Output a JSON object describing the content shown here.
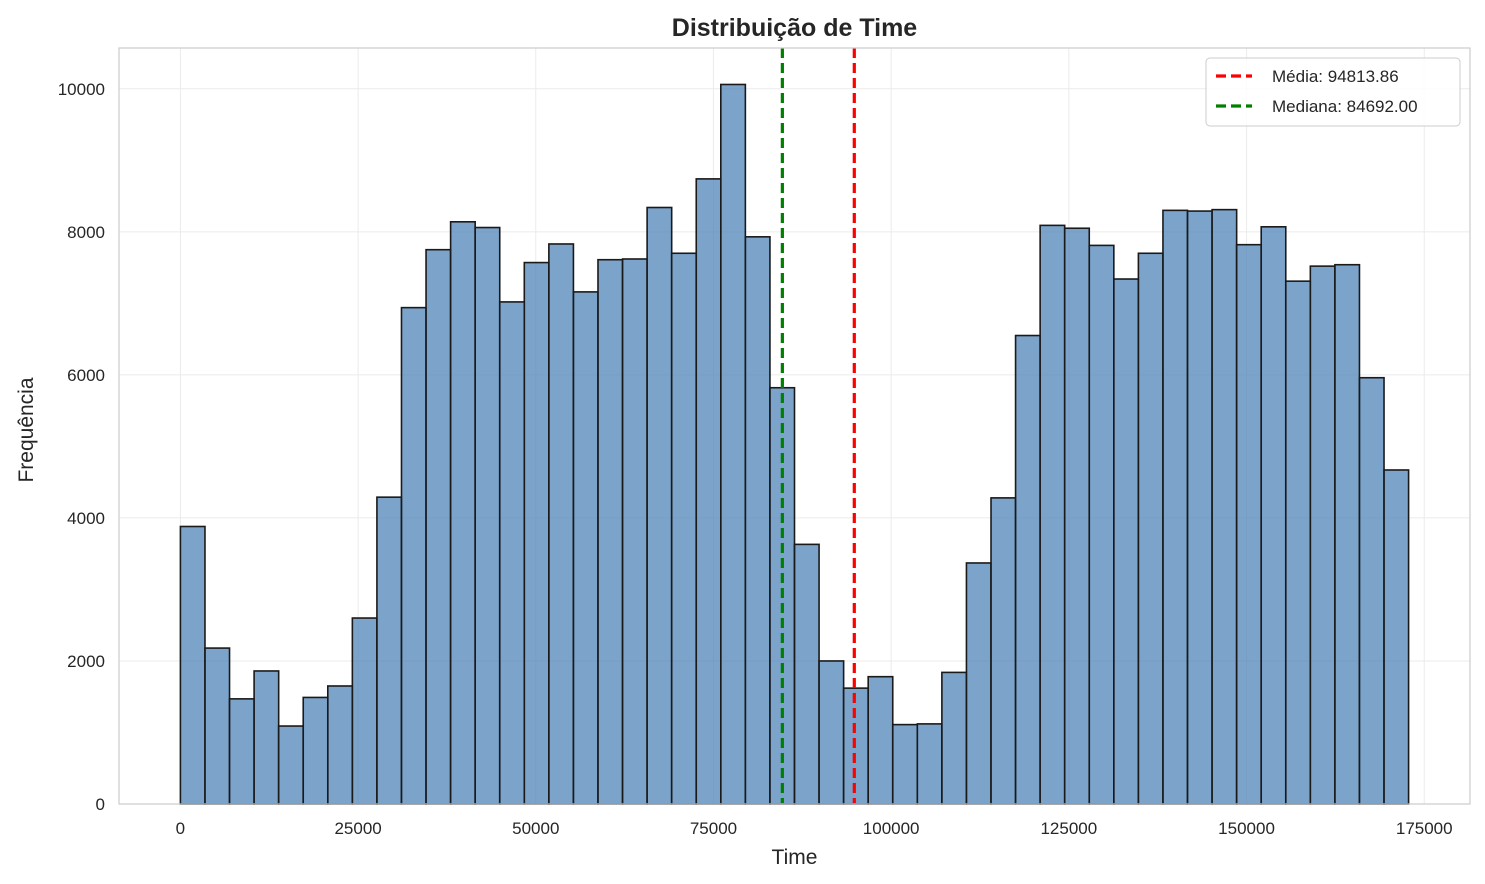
{
  "chart_data": {
    "type": "bar",
    "title": "Distribuição de Time",
    "xlabel": "Time",
    "ylabel": "Frequência",
    "xlim": [
      -8640,
      181440
    ],
    "ylim": [
      0,
      10570
    ],
    "x_ticks": [
      0,
      25000,
      50000,
      75000,
      100000,
      125000,
      150000,
      175000
    ],
    "y_ticks": [
      0,
      2000,
      4000,
      6000,
      8000,
      10000
    ],
    "bin_start": 0,
    "bin_width": 3456,
    "values": [
      3880,
      2180,
      1470,
      1860,
      1090,
      1490,
      1650,
      2600,
      4290,
      6940,
      7750,
      8140,
      8060,
      7020,
      7570,
      7830,
      7160,
      7610,
      7620,
      8340,
      7700,
      8740,
      10060,
      7930,
      5820,
      3630,
      2000,
      1620,
      1780,
      1110,
      1120,
      1840,
      3370,
      4280,
      6550,
      8090,
      8050,
      7810,
      7340,
      7700,
      8300,
      8290,
      8310,
      7820,
      8070,
      7310,
      7520,
      7540,
      5960,
      4670
    ],
    "bar_color": "#4a7fb5",
    "reference_lines": [
      {
        "label": "Média: 94813.86",
        "value": 94813.86,
        "color": "#ff0000"
      },
      {
        "label": "Mediana: 84692.00",
        "value": 84692.0,
        "color": "#008000"
      }
    ],
    "legend_position": "upper-right",
    "grid": true
  }
}
